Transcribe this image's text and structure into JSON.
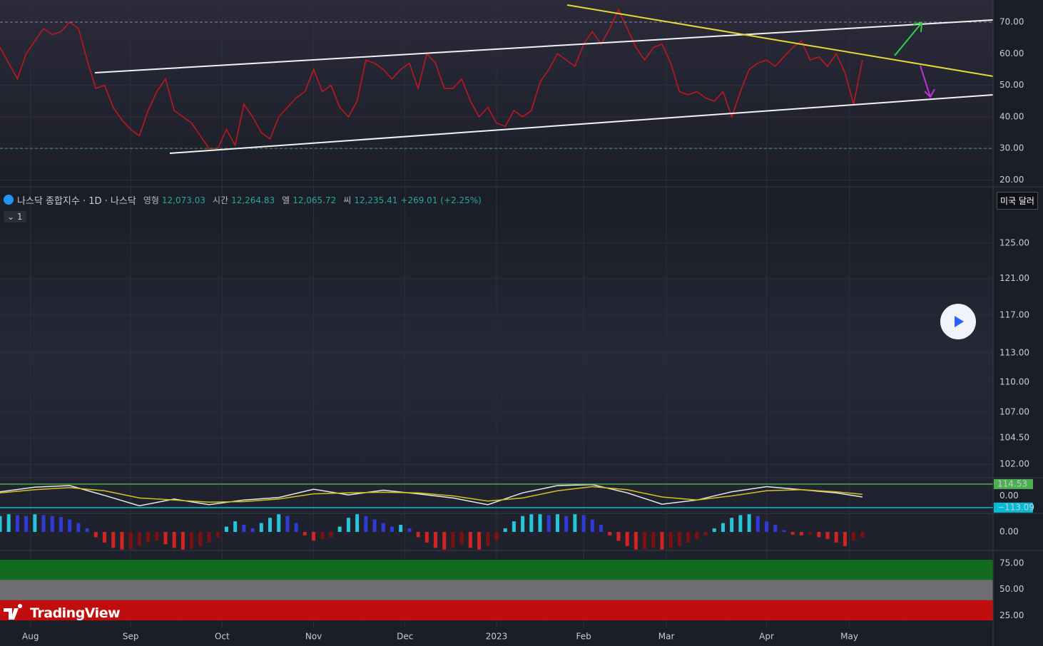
{
  "header": {
    "symbol": "나스닥 종합지수 · 1D · 나스닥",
    "open_label": "영형",
    "open": "12,073.03",
    "high_label": "시간",
    "high": "12,264.83",
    "low_label": "엘",
    "low": "12,065.72",
    "close_label": "씨",
    "close": "12,235.41",
    "change": "+269.01 (+2.25%)",
    "currency": "미국 달러",
    "indicator_count": "1"
  },
  "brand": "TradingView",
  "x_axis": {
    "xlim": [
      0,
      228
    ],
    "xticks": [
      {
        "value": 7,
        "label": "Aug"
      },
      {
        "value": 30,
        "label": "Sep"
      },
      {
        "value": 51,
        "label": "Oct"
      },
      {
        "value": 72,
        "label": "Nov"
      },
      {
        "value": 93,
        "label": "Dec"
      },
      {
        "value": 114,
        "label": "2023"
      },
      {
        "value": 134,
        "label": "Feb"
      },
      {
        "value": 153,
        "label": "Mar"
      },
      {
        "value": 176,
        "label": "Apr"
      },
      {
        "value": 195,
        "label": "May"
      }
    ]
  },
  "chart_data": [
    {
      "type": "line",
      "ylim": [
        17.85,
        77
      ],
      "yticks": [
        {
          "value": 20,
          "label": "20.00"
        },
        {
          "value": 30,
          "label": "30.00"
        },
        {
          "value": 40,
          "label": "40.00"
        },
        {
          "value": 50,
          "label": "50.00"
        },
        {
          "value": 60,
          "label": "60.00"
        },
        {
          "value": 70,
          "label": "70.00"
        }
      ],
      "grid": true,
      "levels": [
        70,
        30
      ],
      "level_colors": [
        "#8a8d99",
        "#3fa34d"
      ],
      "x": [
        0,
        2,
        4,
        6,
        8,
        10,
        12,
        14,
        16,
        18,
        20,
        22,
        24,
        26,
        28,
        30,
        32,
        34,
        36,
        38,
        40,
        42,
        44,
        46,
        48,
        50,
        52,
        54,
        56,
        58,
        60,
        62,
        64,
        66,
        68,
        70,
        72,
        74,
        76,
        78,
        80,
        82,
        84,
        86,
        88,
        90,
        92,
        94,
        96,
        98,
        100,
        102,
        104,
        106,
        108,
        110,
        112,
        114,
        116,
        118,
        120,
        122,
        124,
        126,
        128,
        130,
        132,
        134,
        136,
        138,
        140,
        142,
        144,
        146,
        148,
        150,
        152,
        154,
        156,
        158,
        160,
        162,
        164,
        166,
        168,
        170,
        172,
        174,
        176,
        178,
        180,
        182,
        184,
        186,
        188,
        190,
        192,
        194,
        196,
        198
      ],
      "series": [
        {
          "color": "#c8161e",
          "values": [
            62,
            57,
            52,
            60,
            64,
            68,
            66,
            67,
            70,
            68,
            58,
            49,
            50,
            43,
            39,
            36,
            34,
            42,
            48,
            52,
            42,
            40,
            38,
            34,
            30,
            30,
            36,
            31,
            44,
            40,
            35,
            33,
            40,
            43,
            46,
            48,
            55,
            48,
            50,
            43,
            40,
            45,
            58,
            57,
            55,
            52,
            55,
            57,
            49,
            60,
            57,
            49,
            49,
            52,
            45,
            40,
            43,
            38,
            37,
            42,
            40,
            42,
            51,
            55,
            60,
            58,
            56,
            63,
            67,
            63,
            68,
            74,
            68,
            62,
            58,
            62,
            63,
            57,
            48,
            47,
            48,
            46,
            45,
            48,
            40,
            48,
            55,
            57,
            58,
            56,
            59,
            62,
            64,
            58,
            59,
            56,
            60,
            54,
            44,
            58
          ]
        }
      ]
    },
    {
      "type": "price",
      "log": true,
      "ylim": [
        100.74,
        131.65
      ],
      "yticks": [
        {
          "value": 102,
          "label": "102.00"
        },
        {
          "value": 104.5,
          "label": "104.50"
        },
        {
          "value": 107,
          "label": "107.00"
        },
        {
          "value": 110,
          "label": "110.00"
        },
        {
          "value": 113,
          "label": "113.00"
        },
        {
          "value": 117,
          "label": "117.00"
        },
        {
          "value": 121,
          "label": "121.00"
        },
        {
          "value": 125,
          "label": "125.00"
        }
      ],
      "grid": true
    },
    {
      "type": "line",
      "ylim": [
        -169,
        176
      ],
      "yticks": [
        {
          "value": 114.53,
          "label": "114.53"
        },
        {
          "value": 0,
          "label": "0.00"
        },
        {
          "value": -113.09,
          "label": "−113.09"
        }
      ],
      "tick_badges": [
        "#4caf50",
        null,
        "#00bcd4"
      ],
      "x": [
        0,
        8,
        16,
        24,
        32,
        40,
        48,
        56,
        64,
        72,
        80,
        88,
        96,
        104,
        112,
        120,
        128,
        136,
        144,
        152,
        160,
        168,
        176,
        184,
        192,
        198
      ],
      "series": [
        {
          "color": "#e8e8e8",
          "values": [
            40,
            85,
            100,
            5,
            -95,
            -30,
            -85,
            -40,
            -15,
            65,
            10,
            55,
            20,
            -20,
            -85,
            30,
            100,
            110,
            30,
            -80,
            -40,
            40,
            90,
            60,
            30,
            -10
          ]
        },
        {
          "color": "#d4c21c",
          "values": [
            30,
            60,
            80,
            50,
            -20,
            -40,
            -60,
            -55,
            -30,
            20,
            30,
            35,
            30,
            0,
            -50,
            -20,
            50,
            90,
            60,
            -10,
            -40,
            0,
            50,
            60,
            40,
            15
          ]
        }
      ]
    },
    {
      "type": "histogram",
      "ylim": [
        -1.05,
        1.05
      ],
      "yticks": [
        {
          "value": 0,
          "label": "0.00"
        }
      ],
      "colors": {
        "up_rising": "#26c6da",
        "up_falling": "#2f3bd6",
        "down_falling": "#d32323",
        "down_rising": "#7d1111"
      },
      "x": [
        0,
        2,
        4,
        6,
        8,
        10,
        12,
        14,
        16,
        18,
        20,
        22,
        24,
        26,
        28,
        30,
        32,
        34,
        36,
        38,
        40,
        42,
        44,
        46,
        48,
        50,
        52,
        54,
        56,
        58,
        60,
        62,
        64,
        66,
        68,
        70,
        72,
        74,
        76,
        78,
        80,
        82,
        84,
        86,
        88,
        90,
        92,
        94,
        96,
        98,
        100,
        102,
        104,
        106,
        108,
        110,
        112,
        114,
        116,
        118,
        120,
        122,
        124,
        126,
        128,
        130,
        132,
        134,
        136,
        138,
        140,
        142,
        144,
        146,
        148,
        150,
        152,
        154,
        156,
        158,
        160,
        162,
        164,
        166,
        168,
        170,
        172,
        174,
        176,
        178,
        180,
        182,
        184,
        186,
        188,
        190,
        192,
        194,
        196,
        198
      ],
      "values": [
        0.9,
        1,
        0.95,
        0.9,
        1,
        0.95,
        0.9,
        0.85,
        0.7,
        0.5,
        0.2,
        -0.3,
        -0.6,
        -0.9,
        -1,
        -0.95,
        -0.8,
        -0.6,
        -0.5,
        -0.7,
        -0.9,
        -1,
        -0.95,
        -0.8,
        -0.6,
        -0.3,
        0.3,
        0.6,
        0.4,
        0.2,
        0.5,
        0.8,
        1,
        0.9,
        0.5,
        -0.2,
        -0.5,
        -0.4,
        -0.3,
        0.3,
        0.8,
        1,
        0.9,
        0.7,
        0.5,
        0.3,
        0.4,
        0.2,
        -0.3,
        -0.6,
        -0.9,
        -1,
        -0.9,
        -0.7,
        -0.9,
        -1,
        -0.8,
        -0.5,
        0.2,
        0.6,
        0.9,
        1,
        1,
        0.95,
        1,
        0.9,
        1,
        0.95,
        0.7,
        0.4,
        -0.2,
        -0.5,
        -0.8,
        -1,
        -0.95,
        -0.9,
        -1,
        -0.9,
        -0.8,
        -0.6,
        -0.4,
        -0.2,
        0.2,
        0.5,
        0.8,
        0.95,
        1,
        0.9,
        0.6,
        0.4,
        0.1,
        -0.15,
        -0.2,
        -0.15,
        -0.3,
        -0.4,
        -0.6,
        -0.8,
        -0.5,
        -0.3
      ]
    },
    {
      "type": "bands",
      "ylim": [
        13.7,
        87.3
      ],
      "yticks": [
        {
          "value": 25,
          "label": "25.00"
        },
        {
          "value": 50,
          "label": "50.00"
        },
        {
          "value": 75,
          "label": "75.00"
        }
      ],
      "bands": [
        {
          "from": 59.2,
          "to": 78.4,
          "color": "#136b1d"
        },
        {
          "from": 39.7,
          "to": 59.2,
          "color": "#6e6f73"
        },
        {
          "from": 20.5,
          "to": 39.7,
          "color": "#c10d0d"
        }
      ]
    }
  ]
}
